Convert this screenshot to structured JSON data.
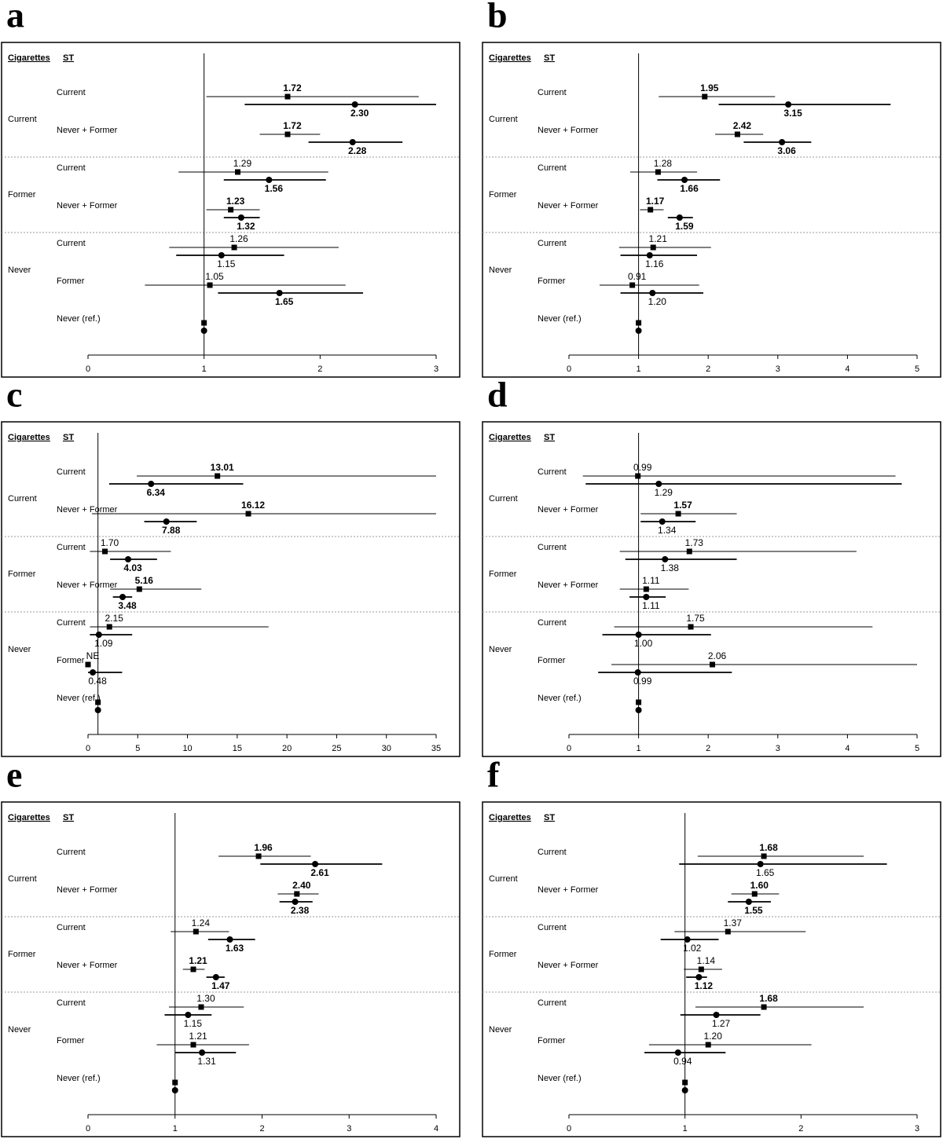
{
  "chart_data": [
    {
      "type": "forest",
      "panel_label": "a",
      "headers": [
        "Cigarettes",
        "ST"
      ],
      "groups": [
        {
          "label": "Current",
          "categories": [
            "Current",
            "Never + Former"
          ]
        },
        {
          "label": "Former",
          "categories": [
            "Current",
            "Never + Former"
          ]
        },
        {
          "label": "Never",
          "categories": [
            "Current",
            "Former",
            "Never (ref.)"
          ]
        }
      ],
      "xlim": [
        0,
        3
      ],
      "xticks": [
        0,
        1,
        2,
        3
      ],
      "series": [
        {
          "marker": "square",
          "color": "#000000",
          "values": [
            1.72,
            1.72,
            1.29,
            1.23,
            1.26,
            1.05,
            1
          ],
          "value_labels": [
            "1.72",
            "1.72",
            "1.29",
            "1.23",
            "1.26",
            "1.05",
            null
          ],
          "lower": [
            1.02,
            1.48,
            0.78,
            1.02,
            0.7,
            0.49,
            null
          ],
          "upper": [
            2.85,
            2.0,
            2.07,
            1.48,
            2.16,
            2.22,
            null
          ],
          "bold": [
            true,
            true,
            false,
            true,
            false,
            false,
            null
          ]
        },
        {
          "marker": "circle",
          "color": "#000000",
          "values": [
            2.3,
            2.28,
            1.56,
            1.32,
            1.15,
            1.65,
            1
          ],
          "value_labels": [
            "2.30",
            "2.28",
            "1.56",
            "1.32",
            "1.15",
            "1.65",
            null
          ],
          "lower": [
            1.35,
            1.9,
            1.17,
            1.17,
            0.76,
            1.12,
            null
          ],
          "upper": [
            3.0,
            2.71,
            2.05,
            1.48,
            1.69,
            2.37,
            null
          ],
          "bold": [
            true,
            true,
            true,
            true,
            false,
            true,
            null
          ]
        }
      ]
    },
    {
      "type": "forest",
      "panel_label": "b",
      "headers": [
        "Cigarettes",
        "ST"
      ],
      "groups": [
        {
          "label": "Current",
          "categories": [
            "Current",
            "Never + Former"
          ]
        },
        {
          "label": "Former",
          "categories": [
            "Current",
            "Never + Former"
          ]
        },
        {
          "label": "Never",
          "categories": [
            "Current",
            "Former",
            "Never (ref.)"
          ]
        }
      ],
      "xlim": [
        0,
        5
      ],
      "xticks": [
        0,
        1,
        2,
        3,
        4,
        5
      ],
      "series": [
        {
          "marker": "square",
          "color": "#000000",
          "values": [
            1.95,
            2.42,
            1.28,
            1.17,
            1.21,
            0.91,
            1
          ],
          "value_labels": [
            "1.95",
            "2.42",
            "1.28",
            "1.17",
            "1.21",
            "0.91",
            null
          ],
          "lower": [
            1.29,
            2.1,
            0.88,
            1.02,
            0.72,
            0.44,
            null
          ],
          "upper": [
            2.96,
            2.79,
            1.84,
            1.36,
            2.04,
            1.87,
            null
          ],
          "bold": [
            true,
            true,
            false,
            true,
            false,
            false,
            null
          ]
        },
        {
          "marker": "circle",
          "color": "#000000",
          "values": [
            3.15,
            3.06,
            1.66,
            1.59,
            1.16,
            1.2,
            1
          ],
          "value_labels": [
            "3.15",
            "3.06",
            "1.66",
            "1.59",
            "1.16",
            "1.20",
            null
          ],
          "lower": [
            2.15,
            2.51,
            1.27,
            1.42,
            0.74,
            0.74,
            null
          ],
          "upper": [
            4.62,
            3.48,
            2.17,
            1.78,
            1.84,
            1.93,
            null
          ],
          "bold": [
            true,
            true,
            true,
            true,
            false,
            false,
            null
          ]
        }
      ]
    },
    {
      "type": "forest",
      "panel_label": "c",
      "headers": [
        "Cigarettes",
        "ST"
      ],
      "groups": [
        {
          "label": "Current",
          "categories": [
            "Current",
            "Never + Former"
          ]
        },
        {
          "label": "Former",
          "categories": [
            "Current",
            "Never + Former"
          ]
        },
        {
          "label": "Never",
          "categories": [
            "Current",
            "Former",
            "Never (ref.)"
          ]
        }
      ],
      "xlim": [
        0,
        35
      ],
      "xticks": [
        0,
        5,
        10,
        15,
        20,
        25,
        30,
        35
      ],
      "series": [
        {
          "marker": "square",
          "color": "#000000",
          "values": [
            13.01,
            16.12,
            1.7,
            5.16,
            2.15,
            null,
            1
          ],
          "value_labels": [
            "13.01",
            "16.12",
            "1.70",
            "5.16",
            "2.15",
            "NE",
            null
          ],
          "lower": [
            4.9,
            0.4,
            0.19,
            2.22,
            0.19,
            null,
            null
          ],
          "upper": [
            35,
            35,
            8.33,
            11.39,
            18.15,
            null,
            null
          ],
          "bold": [
            true,
            true,
            false,
            true,
            false,
            false,
            null
          ]
        },
        {
          "marker": "circle",
          "color": "#000000",
          "values": [
            6.34,
            7.88,
            4.03,
            3.48,
            1.09,
            0.48,
            1
          ],
          "value_labels": [
            "6.34",
            "7.88",
            "4.03",
            "3.48",
            "1.09",
            "0.48",
            null
          ],
          "lower": [
            2.13,
            5.65,
            2.22,
            2.5,
            0.19,
            0.0,
            null
          ],
          "upper": [
            15.6,
            10.93,
            6.94,
            4.44,
            4.44,
            3.43,
            null
          ],
          "bold": [
            true,
            true,
            true,
            true,
            false,
            false,
            null
          ]
        }
      ]
    },
    {
      "type": "forest",
      "panel_label": "d",
      "headers": [
        "Cigarettes",
        "ST"
      ],
      "groups": [
        {
          "label": "Current",
          "categories": [
            "Current",
            "Never + Former"
          ]
        },
        {
          "label": "Former",
          "categories": [
            "Current",
            "Never + Former"
          ]
        },
        {
          "label": "Never",
          "categories": [
            "Current",
            "Former",
            "Never (ref.)"
          ]
        }
      ],
      "xlim": [
        0,
        5
      ],
      "xticks": [
        0,
        1,
        2,
        3,
        4,
        5
      ],
      "series": [
        {
          "marker": "square",
          "color": "#000000",
          "values": [
            0.99,
            1.57,
            1.73,
            1.11,
            1.75,
            2.06,
            1
          ],
          "value_labels": [
            "0.99",
            "1.57",
            "1.73",
            "1.11",
            "1.75",
            "2.06",
            null
          ],
          "lower": [
            0.2,
            1.03,
            0.73,
            0.73,
            0.65,
            0.61,
            null
          ],
          "upper": [
            4.69,
            2.41,
            4.13,
            1.72,
            4.36,
            5.0,
            null
          ],
          "bold": [
            false,
            true,
            false,
            false,
            false,
            false,
            null
          ]
        },
        {
          "marker": "circle",
          "color": "#000000",
          "values": [
            1.29,
            1.34,
            1.38,
            1.11,
            1.0,
            0.99,
            1
          ],
          "value_labels": [
            "1.29",
            "1.34",
            "1.38",
            "1.11",
            "1.00",
            "0.99",
            null
          ],
          "lower": [
            0.24,
            1.03,
            0.81,
            0.87,
            0.48,
            0.42,
            null
          ],
          "upper": [
            4.78,
            1.82,
            2.41,
            1.39,
            2.04,
            2.34,
            null
          ],
          "bold": [
            false,
            false,
            false,
            false,
            false,
            false,
            null
          ]
        }
      ]
    },
    {
      "type": "forest",
      "panel_label": "e",
      "headers": [
        "Cigarettes",
        "ST"
      ],
      "groups": [
        {
          "label": "Current",
          "categories": [
            "Current",
            "Never + Former"
          ]
        },
        {
          "label": "Former",
          "categories": [
            "Current",
            "Never + Former"
          ]
        },
        {
          "label": "Never",
          "categories": [
            "Current",
            "Former",
            "Never (ref.)"
          ]
        }
      ],
      "xlim": [
        0,
        4
      ],
      "xticks": [
        0,
        1,
        2,
        3,
        4
      ],
      "series": [
        {
          "marker": "square",
          "color": "#000000",
          "values": [
            1.96,
            2.4,
            1.24,
            1.21,
            1.3,
            1.21,
            1
          ],
          "value_labels": [
            "1.96",
            "2.40",
            "1.24",
            "1.21",
            "1.30",
            "1.21",
            null
          ],
          "lower": [
            1.5,
            2.18,
            0.95,
            1.09,
            0.93,
            0.79,
            null
          ],
          "upper": [
            2.56,
            2.65,
            1.62,
            1.34,
            1.79,
            1.85,
            null
          ],
          "bold": [
            true,
            true,
            false,
            true,
            false,
            false,
            null
          ]
        },
        {
          "marker": "circle",
          "color": "#000000",
          "values": [
            2.61,
            2.38,
            1.63,
            1.47,
            1.15,
            1.31,
            1
          ],
          "value_labels": [
            "2.61",
            "2.38",
            "1.63",
            "1.47",
            "1.15",
            "1.31",
            null
          ],
          "lower": [
            1.98,
            2.2,
            1.38,
            1.36,
            0.88,
            1.0,
            null
          ],
          "upper": [
            3.38,
            2.58,
            1.92,
            1.57,
            1.42,
            1.7,
            null
          ],
          "bold": [
            true,
            true,
            true,
            true,
            false,
            false,
            null
          ]
        }
      ]
    },
    {
      "type": "forest",
      "panel_label": "f",
      "headers": [
        "Cigarettes",
        "ST"
      ],
      "groups": [
        {
          "label": "Current",
          "categories": [
            "Current",
            "Never + Former"
          ]
        },
        {
          "label": "Former",
          "categories": [
            "Current",
            "Never + Former"
          ]
        },
        {
          "label": "Never",
          "categories": [
            "Current",
            "Former",
            "Never (ref.)"
          ]
        }
      ],
      "xlim": [
        0,
        3
      ],
      "xticks": [
        0,
        1,
        2,
        3
      ],
      "series": [
        {
          "marker": "square",
          "color": "#000000",
          "values": [
            1.68,
            1.6,
            1.37,
            1.14,
            1.68,
            1.2,
            1
          ],
          "value_labels": [
            "1.68",
            "1.60",
            "1.37",
            "1.14",
            "1.68",
            "1.20",
            null
          ],
          "lower": [
            1.11,
            1.4,
            0.91,
            0.99,
            1.09,
            0.69,
            null
          ],
          "upper": [
            2.54,
            1.81,
            2.04,
            1.32,
            2.54,
            2.09,
            null
          ],
          "bold": [
            true,
            true,
            false,
            false,
            true,
            false,
            null
          ]
        },
        {
          "marker": "circle",
          "color": "#000000",
          "values": [
            1.65,
            1.55,
            1.02,
            1.12,
            1.27,
            0.94,
            1
          ],
          "value_labels": [
            "1.65",
            "1.55",
            "1.02",
            "1.12",
            "1.27",
            "0.94",
            null
          ],
          "lower": [
            0.95,
            1.37,
            0.79,
            1.01,
            0.96,
            0.65,
            null
          ],
          "upper": [
            2.74,
            1.74,
            1.29,
            1.19,
            1.65,
            1.35,
            null
          ],
          "bold": [
            false,
            true,
            false,
            true,
            false,
            false,
            null
          ]
        }
      ]
    }
  ]
}
